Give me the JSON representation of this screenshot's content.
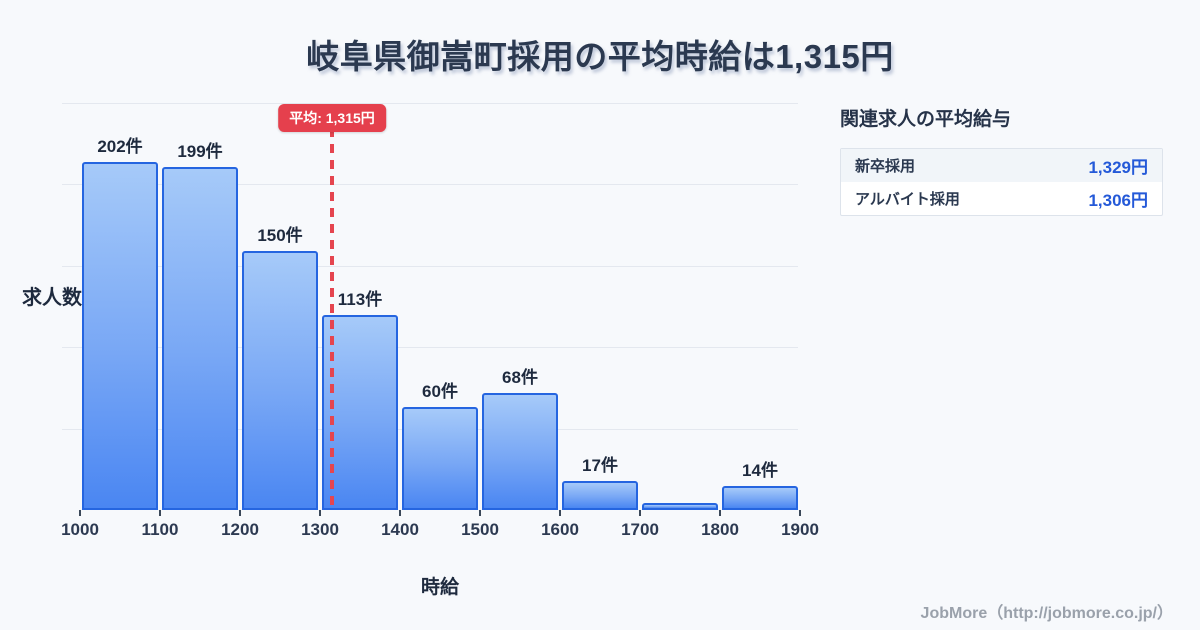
{
  "title": "岐阜県御嵩町採用の平均時給は1,315円",
  "chart_data": {
    "type": "bar",
    "title": "岐阜県御嵩町採用の平均時給は1,315円",
    "xlabel": "時給",
    "ylabel": "求人数",
    "x_range": [
      1000,
      1900
    ],
    "x_tick_labels": [
      "1000",
      "1100",
      "1200",
      "1300",
      "1400",
      "1500",
      "1600",
      "1700",
      "1800",
      "1900"
    ],
    "bins": [
      {
        "range": [
          1000,
          1100
        ],
        "value": 202,
        "label": "202件"
      },
      {
        "range": [
          1100,
          1200
        ],
        "value": 199,
        "label": "199件"
      },
      {
        "range": [
          1200,
          1300
        ],
        "value": 150,
        "label": "150件"
      },
      {
        "range": [
          1300,
          1400
        ],
        "value": 113,
        "label": "113件"
      },
      {
        "range": [
          1400,
          1500
        ],
        "value": 60,
        "label": "60件"
      },
      {
        "range": [
          1500,
          1600
        ],
        "value": 68,
        "label": "68件"
      },
      {
        "range": [
          1600,
          1700
        ],
        "value": 17,
        "label": "17件"
      },
      {
        "range": [
          1700,
          1800
        ],
        "value": 4,
        "label": ""
      },
      {
        "range": [
          1800,
          1900
        ],
        "value": 14,
        "label": "14件"
      }
    ],
    "ylim": [
      0,
      236
    ],
    "grid": "horizontal",
    "gridline_count": 5,
    "legend": "none",
    "average": {
      "value": 1315,
      "label": "平均: 1,315円"
    }
  },
  "side_panel": {
    "heading": "関連求人の平均給与",
    "rows": [
      {
        "label": "新卒採用",
        "value": "1,329円"
      },
      {
        "label": "アルバイト採用",
        "value": "1,306円"
      }
    ]
  },
  "footer": {
    "credit": "JobMore（http://jobmore.co.jp/）"
  },
  "colors": {
    "background": "#f7f9fc",
    "bar_fill_top": "#a6caf9",
    "bar_fill_bottom": "#4a86f2",
    "bar_border": "#2565e0",
    "average_red": "#e5454f",
    "value_blue": "#2459d8",
    "title_navy": "#2b3950",
    "gridline": "#e4e8ef",
    "footer_gray": "#9aa1ab"
  }
}
